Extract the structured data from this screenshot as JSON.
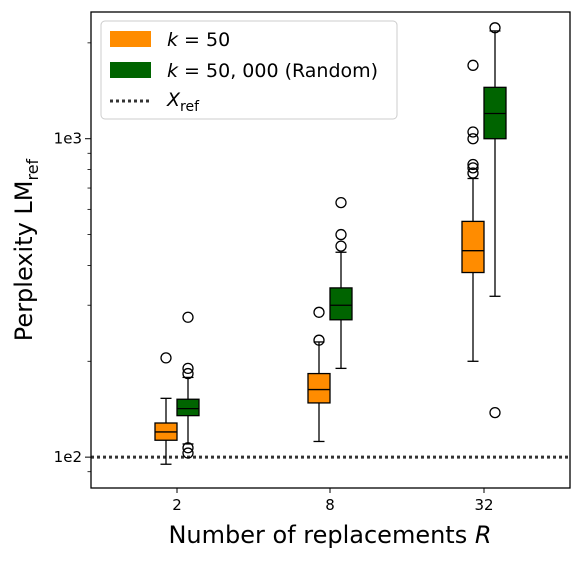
{
  "chart_data": {
    "type": "boxplot",
    "x_label": {
      "text": "Number of replacements ",
      "var": "R"
    },
    "y_label": {
      "text": "Perplexity LM",
      "sub": "ref"
    },
    "y_scale": "log",
    "y_range": [
      80,
      2500
    ],
    "y_ticks": [
      {
        "value": 100,
        "label": "1e2"
      },
      {
        "value": 1000,
        "label": "1e3"
      }
    ],
    "categories": [
      "2",
      "8",
      "32"
    ],
    "reference_line": {
      "value": 100,
      "style": "dotted",
      "color": "#333333"
    },
    "legend": {
      "position": "top-left",
      "entries": [
        {
          "key": "k50",
          "k_label": "k",
          "eq_text": " = 50",
          "suffix": ""
        },
        {
          "key": "k50000",
          "k_label": "k",
          "eq_text": " = 50, 000",
          "suffix": " (Random)"
        },
        {
          "key": "ref",
          "var": "X",
          "sub": "ref"
        }
      ]
    },
    "series": [
      {
        "key": "k50",
        "color": "#ff8c00",
        "boxes": [
          {
            "category": "2",
            "whisker_low": 95,
            "q1": 113,
            "median": 120,
            "q3": 128,
            "whisker_high": 153,
            "outliers": [
              205
            ]
          },
          {
            "category": "8",
            "whisker_low": 112,
            "q1": 148,
            "median": 163,
            "q3": 183,
            "whisker_high": 230,
            "outliers": [
              233,
              285
            ]
          },
          {
            "category": "32",
            "whisker_low": 200,
            "q1": 380,
            "median": 445,
            "q3": 550,
            "whisker_high": 750,
            "outliers": [
              780,
              810,
              830,
              1000,
              1050,
              1700
            ]
          }
        ]
      },
      {
        "key": "k50000",
        "color": "#006400",
        "boxes": [
          {
            "category": "2",
            "whisker_low": 110,
            "q1": 135,
            "median": 142,
            "q3": 152,
            "whisker_high": 178,
            "outliers": [
              103,
              107,
              183,
              190,
              275
            ]
          },
          {
            "category": "8",
            "whisker_low": 190,
            "q1": 270,
            "median": 300,
            "q3": 340,
            "whisker_high": 440,
            "outliers": [
              460,
              500,
              630
            ]
          },
          {
            "category": "32",
            "whisker_low": 320,
            "q1": 1000,
            "median": 1200,
            "q3": 1450,
            "whisker_high": 2180,
            "outliers": [
              138,
              2230
            ]
          }
        ]
      }
    ]
  }
}
